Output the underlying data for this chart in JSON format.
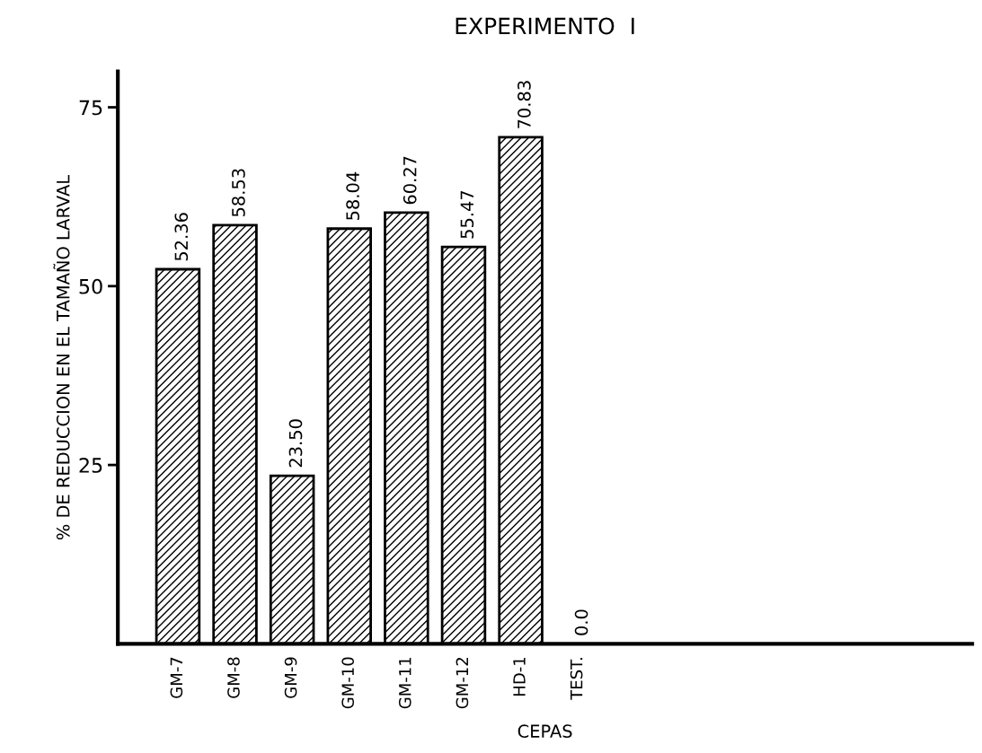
{
  "chart_data": {
    "type": "bar",
    "title": "EXPERIMENTO  I",
    "xlabel": "CEPAS",
    "ylabel": "% DE REDUCCION EN EL TAMAÑO LARVAL",
    "categories": [
      "GM-7",
      "GM-8",
      "GM-9",
      "GM-10",
      "GM-11",
      "GM-12",
      "HD-1",
      "TEST."
    ],
    "values": [
      52.36,
      58.53,
      23.5,
      58.04,
      60.27,
      55.47,
      70.83,
      0
    ],
    "value_labels": [
      "52.36",
      "58.53",
      "23.50",
      "58.04",
      "60.27",
      "55.47",
      "70.83",
      "0.0"
    ],
    "color": "#000000",
    "ylim": [
      0,
      80
    ],
    "yticks": [
      25,
      50,
      75
    ],
    "grid": false,
    "legend": false
  }
}
